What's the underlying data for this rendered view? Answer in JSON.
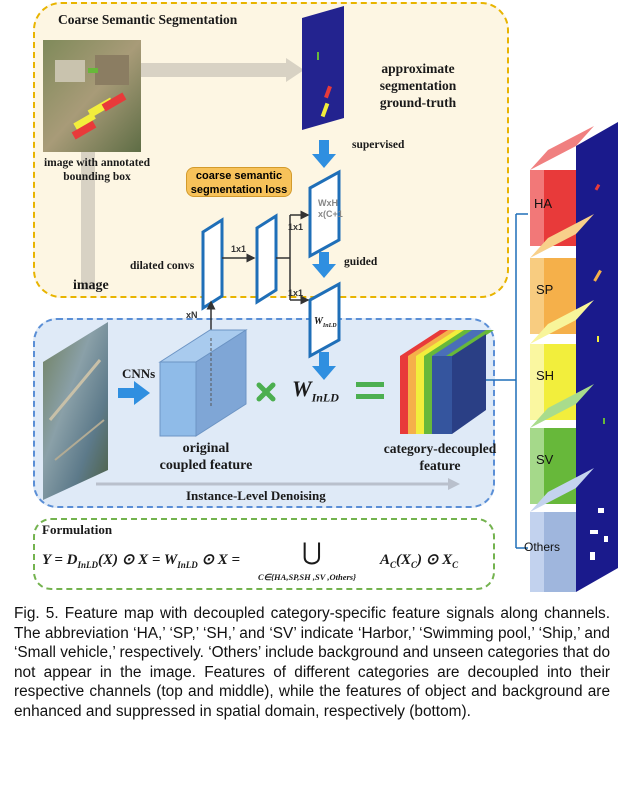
{
  "top_panel": {
    "title": "Coarse Semantic Segmentation",
    "image_label_1": "image with annotated",
    "image_label_2": "bounding box",
    "gt_label_1": "approximate",
    "gt_label_2": "segmentation",
    "gt_label_3": "ground-truth",
    "supervised": "supervised",
    "loss_1": "coarse semantic",
    "loss_2": "segmentation loss",
    "dilated": "dilated convs",
    "wxh_1": "WxH",
    "wxh_2": "x(C+1",
    "guided": "guided",
    "k1": "1x1",
    "k2": "1x1",
    "k3": "1x1",
    "xn": "xN"
  },
  "mid_panel": {
    "image": "image",
    "cnns": "CNNs",
    "orig_1": "original",
    "orig_2": "coupled feature",
    "w_main": "W",
    "w_sub": "InLD",
    "w_small": "W",
    "w_small_sub": "InLD",
    "decoupled_1": "category-decoupled",
    "decoupled_2": "feature",
    "denoise": "Instance-Level Denoising"
  },
  "formulation": {
    "title": "Formulation",
    "eq_left": "Y = D",
    "eq_sub1": "InLD",
    "eq_mid": "(X) ⊙ X = W",
    "eq_sub2": "InLD",
    "eq_right": " ⊙ X =",
    "union": "⋃",
    "union_sub": "C∈{HA,SP,SH ,SV ,Others}",
    "term": "A",
    "term_sub": "C",
    "term_rest": "(X",
    "term_sub2": "C",
    "term_end": ") ⊙ X",
    "term_sub3": "C"
  },
  "channels": {
    "ha": "HA",
    "sp": "SP",
    "sh": "SH",
    "sv": "SV",
    "others": "Others"
  },
  "caption": "Fig. 5. Feature map with decoupled category-specific feature signals along channels. The abbreviation ‘HA,’ ‘SP,’ ‘SH,’ and ‘SV’ indicate ‘Harbor,’ ‘Swimming pool,’ ‘Ship,’ and ‘Small vehicle,’ respectively. ‘Others’ include background and unseen categories that do not appear in the image. Features of different categories are decoupled into their respective channels (top and middle), while the features of object and background are enhanced and suppressed in spatial domain, respectively (bottom).",
  "colors": {
    "ha": "#e83a3a",
    "sp": "#f5b04a",
    "sh": "#f2ee3c",
    "sv": "#67b83a",
    "others": "#9fb6dd",
    "navy": "#1a1a8c",
    "arrow_blue": "#2f8fe0"
  }
}
